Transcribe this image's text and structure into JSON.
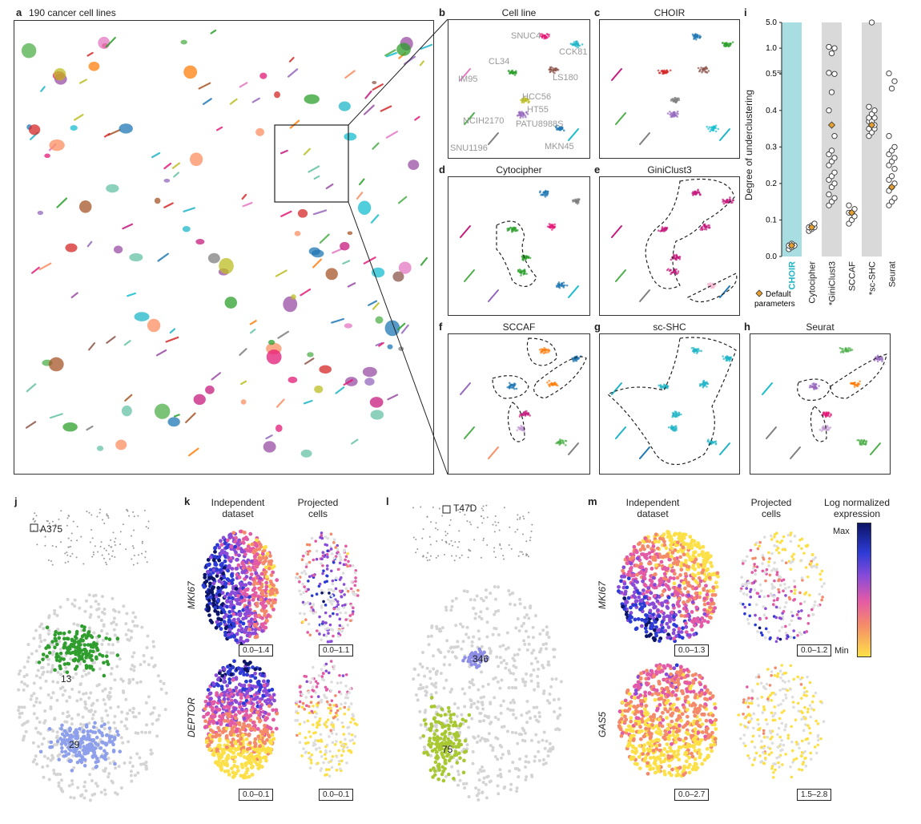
{
  "panel_a": {
    "letter": "a",
    "title": "190 cancer cell lines"
  },
  "panel_b": {
    "letter": "b",
    "title": "Cell line",
    "cell_labels": [
      "SNUC4",
      "CCK81",
      "CL34",
      "LS180",
      "IM95",
      "HCC56",
      "HT55",
      "NCIH2170",
      "PATU8988S",
      "SNU1196",
      "MKN45"
    ]
  },
  "panel_c": {
    "letter": "c",
    "title": "CHOIR"
  },
  "panel_d": {
    "letter": "d",
    "title": "Cytocipher"
  },
  "panel_e": {
    "letter": "e",
    "title": "GiniClust3"
  },
  "panel_f": {
    "letter": "f",
    "title": "SCCAF"
  },
  "panel_g": {
    "letter": "g",
    "title": "sc-SHC"
  },
  "panel_h": {
    "letter": "h",
    "title": "Seurat"
  },
  "panel_i": {
    "letter": "i",
    "ylabel": "Degree of underclustering",
    "yticks": [
      "0.0",
      "0.1",
      "0.2",
      "0.3",
      "0.4",
      "0.5",
      "1.0",
      "5.0"
    ],
    "methods": [
      "CHOIR",
      "Cytocipher",
      "*GiniClust3",
      "SCCAF",
      "*sc-SHC",
      "Seurat"
    ],
    "legend": "Default parameters",
    "colors": {
      "choir_band": "#a8dde2",
      "grey_band": "#d9d9d9",
      "default_marker": "#e69f2e",
      "choir_text": "#1fb5c7"
    }
  },
  "chart_data": {
    "type": "scatter",
    "xlabel": "",
    "ylabel": "Degree of underclustering",
    "categories": [
      "CHOIR",
      "Cytocipher",
      "*GiniClust3",
      "SCCAF",
      "*sc-SHC",
      "Seurat"
    ],
    "series": [
      {
        "name": "",
        "values": [
          [
            0.02,
            0.025,
            0.03,
            0.03,
            0.035
          ],
          [
            0.07,
            0.075,
            0.08,
            0.08,
            0.085,
            0.09
          ],
          [
            0.14,
            0.15,
            0.16,
            0.17,
            0.19,
            0.2,
            0.21,
            0.22,
            0.23,
            0.25,
            0.26,
            0.27,
            0.28,
            0.29,
            0.33,
            0.4,
            0.45,
            0.5,
            0.52,
            0.9,
            1.0,
            1.2
          ],
          [
            0.09,
            0.1,
            0.11,
            0.12,
            0.12,
            0.13,
            0.14
          ],
          [
            0.33,
            0.34,
            0.35,
            0.35,
            0.36,
            0.36,
            0.37,
            0.37,
            0.38,
            0.38,
            0.39,
            0.4,
            0.41,
            5.0
          ],
          [
            0.14,
            0.15,
            0.16,
            0.18,
            0.19,
            0.2,
            0.21,
            0.22,
            0.24,
            0.25,
            0.26,
            0.27,
            0.28,
            0.29,
            0.3,
            0.33,
            0.46,
            0.48,
            0.51
          ]
        ]
      },
      {
        "name": "Default parameters",
        "values": [
          0.03,
          0.08,
          0.36,
          0.12,
          0.36,
          0.19
        ]
      }
    ]
  },
  "panel_j": {
    "letter": "j",
    "cell_line": "A375",
    "cluster_a": "13",
    "cluster_b": "29"
  },
  "panel_k": {
    "letter": "k",
    "col1": "Independent dataset",
    "col2": "Projected cells",
    "genes": [
      "MKI67",
      "DEPTOR"
    ],
    "ranges": [
      "0.0–1.4",
      "0.0–1.1",
      "0.0–0.1",
      "0.0–0.1"
    ]
  },
  "panel_l": {
    "letter": "l",
    "cell_line": "T47D",
    "cluster_a": "346",
    "cluster_b": "75"
  },
  "panel_m": {
    "letter": "m",
    "col1": "Independent dataset",
    "col2": "Projected cells",
    "genes": [
      "MKI67",
      "GAS5"
    ],
    "ranges": [
      "0.0–1.3",
      "0.0–1.2",
      "0.0–2.7",
      "1.5–2.8"
    ],
    "legend_title": "Log normalized expression",
    "legend_max": "Max",
    "legend_min": "Min"
  }
}
